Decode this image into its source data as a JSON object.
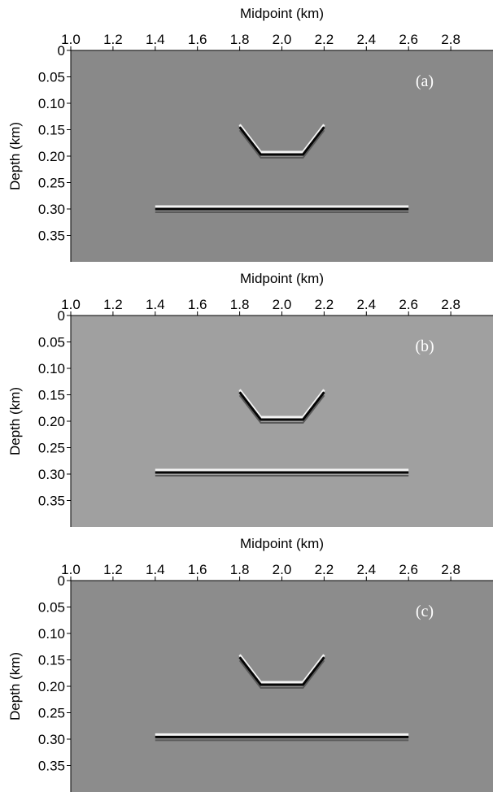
{
  "chart_data": [
    {
      "type": "image",
      "x_label": "Midpoint (km)",
      "y_label": "Depth (km)",
      "panel_label": "(a)",
      "background": "#898989",
      "xlim": [
        1.0,
        3.0
      ],
      "ylim": [
        0,
        0.4
      ],
      "xticks": [
        {
          "value": 1.0,
          "label": "1.0"
        },
        1.2,
        1.4,
        1.6,
        1.8,
        {
          "value": 2.0,
          "label": "2.0"
        },
        2.2,
        2.4,
        2.6,
        2.8
      ],
      "yticks": [
        0,
        0.05,
        {
          "value": 0.1,
          "label": "0.10"
        },
        0.15,
        {
          "value": 0.2,
          "label": "0.20"
        },
        0.25,
        {
          "value": 0.3,
          "label": "0.30"
        },
        0.35
      ],
      "reflectors": [
        {
          "x": [
            1.4,
            2.6
          ],
          "y": [
            0.3,
            0.3
          ]
        },
        {
          "x": [
            1.8,
            1.9,
            2.1,
            2.2
          ],
          "y": [
            0.145,
            0.197,
            0.197,
            0.145
          ]
        }
      ]
    },
    {
      "type": "image",
      "x_label": "Midpoint (km)",
      "y_label": "Depth (km)",
      "panel_label": "(b)",
      "background": "#a0a0a0",
      "xlim": [
        1.0,
        3.0
      ],
      "ylim": [
        0,
        0.4
      ],
      "xticks": [
        {
          "value": 1.0,
          "label": "1.0"
        },
        1.2,
        1.4,
        1.6,
        1.8,
        {
          "value": 2.0,
          "label": "2.0"
        },
        2.2,
        2.4,
        2.6,
        2.8
      ],
      "yticks": [
        0,
        0.05,
        {
          "value": 0.1,
          "label": "0.10"
        },
        0.15,
        {
          "value": 0.2,
          "label": "0.20"
        },
        0.25,
        {
          "value": 0.3,
          "label": "0.30"
        },
        0.35
      ],
      "reflectors": [
        {
          "x": [
            1.4,
            2.6
          ],
          "y": [
            0.297,
            0.297
          ]
        },
        {
          "x": [
            1.8,
            1.9,
            2.1,
            2.2
          ],
          "y": [
            0.145,
            0.197,
            0.197,
            0.145
          ]
        }
      ]
    },
    {
      "type": "image",
      "x_label": "Midpoint (km)",
      "y_label": "Depth (km)",
      "panel_label": "(c)",
      "background": "#8c8c8c",
      "xlim": [
        1.0,
        3.0
      ],
      "ylim": [
        0,
        0.4
      ],
      "xticks": [
        {
          "value": 1.0,
          "label": "1.0"
        },
        1.2,
        1.4,
        1.6,
        1.8,
        {
          "value": 2.0,
          "label": "2.0"
        },
        2.2,
        2.4,
        2.6,
        2.8
      ],
      "yticks": [
        0,
        0.05,
        {
          "value": 0.1,
          "label": "0.10"
        },
        0.15,
        {
          "value": 0.2,
          "label": "0.20"
        },
        0.25,
        {
          "value": 0.3,
          "label": "0.30"
        },
        0.35
      ],
      "reflectors": [
        {
          "x": [
            1.4,
            2.6
          ],
          "y": [
            0.296,
            0.296
          ]
        },
        {
          "x": [
            1.8,
            1.9,
            2.1,
            2.2
          ],
          "y": [
            0.145,
            0.197,
            0.197,
            0.145
          ]
        }
      ]
    }
  ]
}
